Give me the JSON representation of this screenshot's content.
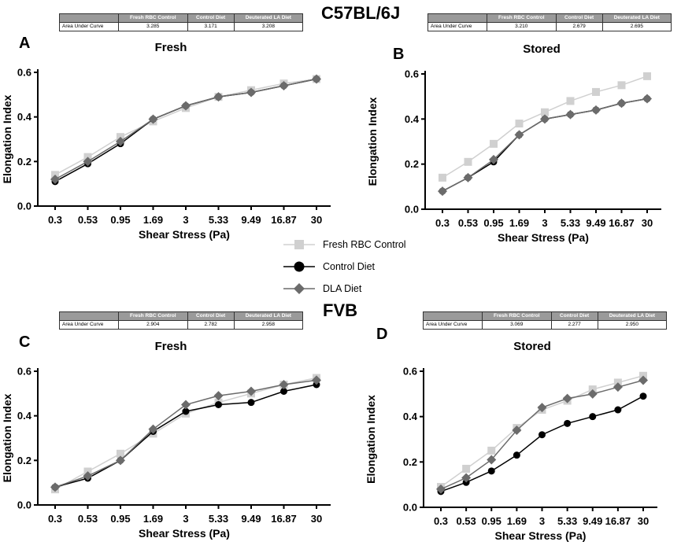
{
  "strains": [
    "C57BL/6J",
    "FVB"
  ],
  "legend": [
    {
      "name": "Fresh RBC Control",
      "color": "#d0d0d0",
      "marker": "square"
    },
    {
      "name": "Control Diet",
      "color": "#000000",
      "marker": "circle"
    },
    {
      "name": "DLA Diet",
      "color": "#6b6b6b",
      "marker": "diamond"
    }
  ],
  "auc_tables": [
    {
      "headers": [
        "Fresh RBC Control",
        "Control Diet",
        "Deuterated LA Diet"
      ],
      "row_label": "Area Under Curve",
      "values": [
        "3.285",
        "3.171",
        "3.208"
      ]
    },
    {
      "headers": [
        "Fresh RBC Control",
        "Control Diet",
        "Deuterated LA Diet"
      ],
      "row_label": "Area Under Curve",
      "values": [
        "3.210",
        "2.679",
        "2.695"
      ]
    },
    {
      "headers": [
        "Fresh RBC Control",
        "Control Diet",
        "Deuterated LA Diet"
      ],
      "row_label": "Area Under Curve",
      "values": [
        "2.904",
        "2.782",
        "2.958"
      ]
    },
    {
      "headers": [
        "Fresh RBC Control",
        "Control Diet",
        "Deuterated LA Diet"
      ],
      "row_label": "Area Under Curve",
      "values": [
        "3.069",
        "2.277",
        "2.950"
      ]
    }
  ],
  "chart_data": [
    {
      "type": "line",
      "panel": "A",
      "title": "Fresh",
      "xlabel": "Shear Stress (Pa)",
      "ylabel": "Elongation Index",
      "categories": [
        "0.3",
        "0.53",
        "0.95",
        "1.69",
        "3",
        "5.33",
        "9.49",
        "16.87",
        "30"
      ],
      "yticks": [
        "0.0",
        "0.2",
        "0.4",
        "0.6"
      ],
      "ylim": [
        0,
        0.6
      ],
      "series": [
        {
          "name": "Fresh RBC Control",
          "values": [
            0.14,
            0.22,
            0.31,
            0.38,
            0.44,
            0.49,
            0.52,
            0.55,
            0.57
          ]
        },
        {
          "name": "Control Diet",
          "values": [
            0.11,
            0.19,
            0.28,
            0.39,
            0.45,
            0.49,
            0.51,
            0.54,
            0.57
          ]
        },
        {
          "name": "DLA Diet",
          "values": [
            0.12,
            0.2,
            0.29,
            0.39,
            0.45,
            0.49,
            0.51,
            0.54,
            0.57
          ]
        }
      ]
    },
    {
      "type": "line",
      "panel": "B",
      "title": "Stored",
      "xlabel": "Shear Stress (Pa)",
      "ylabel": "Elongation Index",
      "categories": [
        "0.3",
        "0.53",
        "0.95",
        "1.69",
        "3",
        "5.33",
        "9.49",
        "16.87",
        "30"
      ],
      "yticks": [
        "0.0",
        "0.2",
        "0.4",
        "0.6"
      ],
      "ylim": [
        0,
        0.6
      ],
      "series": [
        {
          "name": "Fresh RBC Control",
          "values": [
            0.14,
            0.21,
            0.29,
            0.38,
            0.43,
            0.48,
            0.52,
            0.55,
            0.59
          ]
        },
        {
          "name": "Control Diet",
          "values": [
            0.08,
            0.14,
            0.21,
            0.33,
            0.4,
            0.42,
            0.44,
            0.47,
            0.49
          ]
        },
        {
          "name": "DLA Diet",
          "values": [
            0.08,
            0.14,
            0.22,
            0.33,
            0.4,
            0.42,
            0.44,
            0.47,
            0.49
          ]
        }
      ]
    },
    {
      "type": "line",
      "panel": "C",
      "title": "Fresh",
      "xlabel": "Shear Stress (Pa)",
      "ylabel": "Elongation Index",
      "categories": [
        "0.3",
        "0.53",
        "0.95",
        "1.69",
        "3",
        "5.33",
        "9.49",
        "16.87",
        "30"
      ],
      "yticks": [
        "0.0",
        "0.2",
        "0.4",
        "0.6"
      ],
      "ylim": [
        0,
        0.6
      ],
      "series": [
        {
          "name": "Fresh RBC Control",
          "values": [
            0.07,
            0.15,
            0.23,
            0.32,
            0.41,
            0.46,
            0.5,
            0.54,
            0.57
          ]
        },
        {
          "name": "Control Diet",
          "values": [
            0.08,
            0.12,
            0.2,
            0.33,
            0.42,
            0.45,
            0.46,
            0.51,
            0.54
          ]
        },
        {
          "name": "DLA Diet",
          "values": [
            0.08,
            0.13,
            0.2,
            0.34,
            0.45,
            0.49,
            0.51,
            0.54,
            0.56
          ]
        }
      ]
    },
    {
      "type": "line",
      "panel": "D",
      "title": "Stored",
      "xlabel": "Shear Stress (Pa)",
      "ylabel": "Elongation Index",
      "categories": [
        "0.3",
        "0.53",
        "0.95",
        "1.69",
        "3",
        "5.33",
        "9.49",
        "16.87",
        "30"
      ],
      "yticks": [
        "0.0",
        "0.2",
        "0.4",
        "0.6"
      ],
      "ylim": [
        0,
        0.6
      ],
      "series": [
        {
          "name": "Fresh RBC Control",
          "values": [
            0.09,
            0.17,
            0.25,
            0.35,
            0.43,
            0.47,
            0.52,
            0.55,
            0.58
          ]
        },
        {
          "name": "Control Diet",
          "values": [
            0.07,
            0.11,
            0.16,
            0.23,
            0.32,
            0.37,
            0.4,
            0.43,
            0.49
          ]
        },
        {
          "name": "DLA Diet",
          "values": [
            0.08,
            0.13,
            0.21,
            0.34,
            0.44,
            0.48,
            0.5,
            0.53,
            0.56
          ]
        }
      ]
    }
  ]
}
